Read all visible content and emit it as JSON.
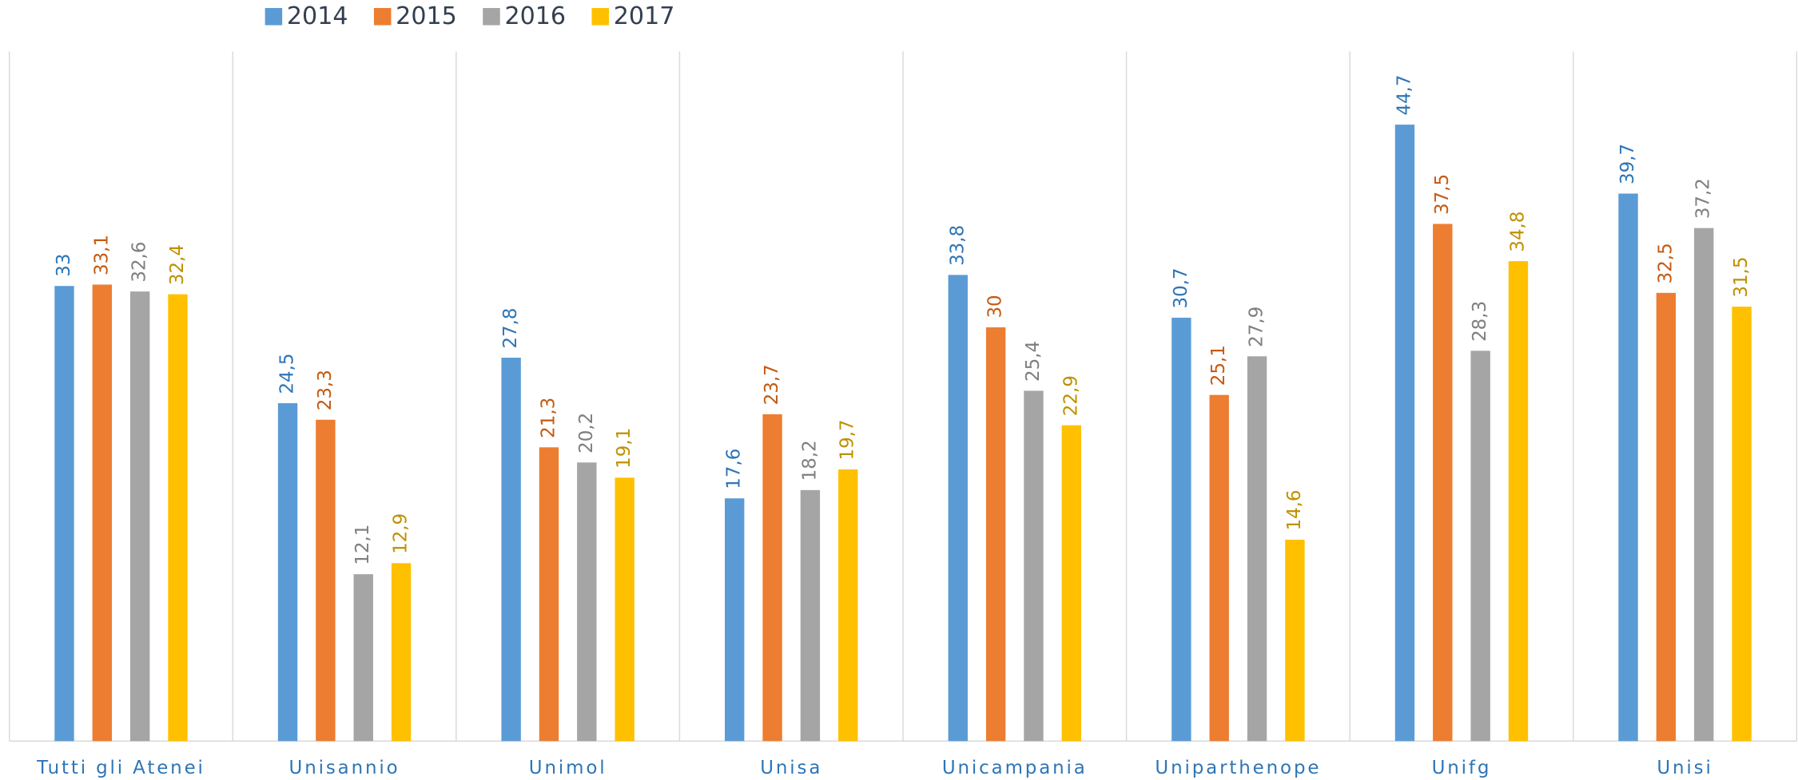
{
  "chart_data": {
    "type": "bar",
    "categories": [
      "Tutti gli Atenei",
      "Unisannio",
      "Unimol",
      "Unisa",
      "Unicampania",
      "Uniparthenope",
      "Unifg",
      "Unisi"
    ],
    "series": [
      {
        "name": "2014",
        "color": "#5b9bd5",
        "label_color": "#2e75b6",
        "values": [
          33,
          24.5,
          27.8,
          17.6,
          33.8,
          30.7,
          44.7,
          39.7
        ],
        "value_labels": [
          "33",
          "24,5",
          "27,8",
          "17,6",
          "33,8",
          "30,7",
          "44,7",
          "39,7"
        ]
      },
      {
        "name": "2015",
        "color": "#ed7d31",
        "label_color": "#c55a11",
        "values": [
          33.1,
          23.3,
          21.3,
          23.7,
          30,
          25.1,
          37.5,
          32.5
        ],
        "value_labels": [
          "33,1",
          "23,3",
          "21,3",
          "23,7",
          "30",
          "25,1",
          "37,5",
          "32,5"
        ]
      },
      {
        "name": "2016",
        "color": "#a5a5a5",
        "label_color": "#7f7f7f",
        "values": [
          32.6,
          12.1,
          20.2,
          18.2,
          25.4,
          27.9,
          28.3,
          37.2
        ],
        "value_labels": [
          "32,6",
          "12,1",
          "20,2",
          "18,2",
          "25,4",
          "27,9",
          "28,3",
          "37,2"
        ]
      },
      {
        "name": "2017",
        "color": "#ffc000",
        "label_color": "#bf9000",
        "values": [
          32.4,
          12.9,
          19.1,
          19.7,
          22.9,
          14.6,
          34.8,
          31.5
        ],
        "value_labels": [
          "32,4",
          "12,9",
          "19,1",
          "19,7",
          "22,9",
          "14,6",
          "34,8",
          "31,5"
        ]
      }
    ],
    "ylim": [
      0,
      50
    ],
    "legend": "top"
  }
}
